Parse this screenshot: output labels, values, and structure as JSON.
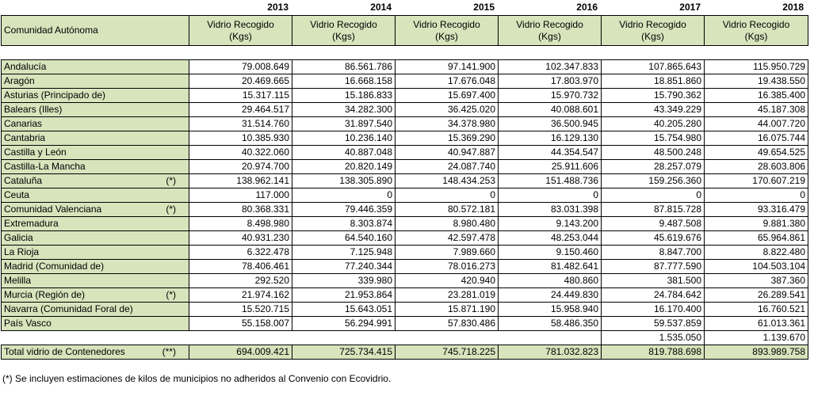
{
  "years": [
    "2013",
    "2014",
    "2015",
    "2016",
    "2017",
    "2018"
  ],
  "header": {
    "region_label": "Comunidad Autónoma",
    "column_label_line1": "Vidrio Recogido",
    "column_label_line2": "(Kgs)"
  },
  "rows": [
    {
      "name": "Andalucía",
      "mark": "",
      "values": [
        "79.008.649",
        "86.561.786",
        "97.141.900",
        "102.347.833",
        "107.865.643",
        "115.950.729"
      ]
    },
    {
      "name": "Aragón",
      "mark": "",
      "values": [
        "20.469.665",
        "16.668.158",
        "17.676.048",
        "17.803.970",
        "18.851.860",
        "19.438.550"
      ]
    },
    {
      "name": "Asturias (Principado de)",
      "mark": "",
      "values": [
        "15.317.115",
        "15.186.833",
        "15.697.400",
        "15.970.732",
        "15.790.362",
        "16.385.400"
      ]
    },
    {
      "name": "Balears (Illes)",
      "mark": "",
      "values": [
        "29.464.517",
        "34.282.300",
        "36.425.020",
        "40.088.601",
        "43.349.229",
        "45.187.308"
      ]
    },
    {
      "name": "Canarias",
      "mark": "",
      "values": [
        "31.514.760",
        "31.897.540",
        "34.378.980",
        "36.500.945",
        "40.205.280",
        "44.007.720"
      ]
    },
    {
      "name": "Cantabria",
      "mark": "",
      "values": [
        "10.385.930",
        "10.236.140",
        "15.369.290",
        "16.129.130",
        "15.754.980",
        "16.075.744"
      ]
    },
    {
      "name": "Castilla y León",
      "mark": "",
      "values": [
        "40.322.060",
        "40.887.048",
        "40.947.887",
        "44.354.547",
        "48.500.248",
        "49.654.525"
      ]
    },
    {
      "name": "Castilla-La Mancha",
      "mark": "",
      "values": [
        "20.974.700",
        "20.820.149",
        "24.087.740",
        "25.911.606",
        "28.257.079",
        "28.603.806"
      ]
    },
    {
      "name": "Cataluña",
      "mark": "(*)",
      "values": [
        "138.962.141",
        "138.305.890",
        "148.434.253",
        "151.488.736",
        "159.256.360",
        "170.607.219"
      ]
    },
    {
      "name": "Ceuta",
      "mark": "",
      "values": [
        "117.000",
        "0",
        "0",
        "0",
        "0",
        "0"
      ]
    },
    {
      "name": "Comunidad Valenciana",
      "mark": "(*)",
      "values": [
        "80.368.331",
        "79.446.359",
        "80.572.181",
        "83.031.398",
        "87.815.728",
        "93.316.479"
      ]
    },
    {
      "name": "Extremadura",
      "mark": "",
      "values": [
        "8.498.980",
        "8.303.874",
        "8.980.480",
        "9.143.200",
        "9.487.508",
        "9.881.380"
      ]
    },
    {
      "name": "Galicia",
      "mark": "",
      "values": [
        "40.931.230",
        "64.540.160",
        "42.597.478",
        "48.253.044",
        "45.619.676",
        "65.964.861"
      ]
    },
    {
      "name": "La Rioja",
      "mark": "",
      "values": [
        "6.322.478",
        "7.125.948",
        "7.989.660",
        "9.150.460",
        "8.847.700",
        "8.822.480"
      ]
    },
    {
      "name": "Madrid (Comunidad de)",
      "mark": "",
      "values": [
        "78.406.461",
        "77.240.344",
        "78.016.273",
        "81.482.641",
        "87.777.590",
        "104.503.104"
      ]
    },
    {
      "name": "Melilla",
      "mark": "",
      "values": [
        "292.520",
        "339.980",
        "420.940",
        "480.860",
        "381.500",
        "387.360"
      ]
    },
    {
      "name": "Murcia (Región de)",
      "mark": "(*)",
      "values": [
        "21.974.162",
        "21.953.864",
        "23.281.019",
        "24.449.830",
        "24.784.642",
        "26.289.541"
      ]
    },
    {
      "name": "Navarra (Comunidad Foral de)",
      "mark": "",
      "values": [
        "15.520.715",
        "15.643.051",
        "15.871.190",
        "15.958.940",
        "16.170.400",
        "16.760.521"
      ]
    },
    {
      "name": "País Vasco",
      "mark": "",
      "values": [
        "55.158.007",
        "56.294.991",
        "57.830.486",
        "58.486.350",
        "59.537.859",
        "61.013.361"
      ]
    }
  ],
  "extra_rows": [
    [
      "",
      "",
      "",
      "",
      "1.535.050",
      "1.139.670"
    ]
  ],
  "total": {
    "name": "Total vidrio de Contenedores",
    "mark": "(**)",
    "values": [
      "694.009.421",
      "725.734.415",
      "745.718.225",
      "781.032.823",
      "819.788.698",
      "893.989.758"
    ]
  },
  "footnote": "(*)  Se incluyen estimaciones de kilos de municipios no adheridos al Convenio con Ecovidrio."
}
